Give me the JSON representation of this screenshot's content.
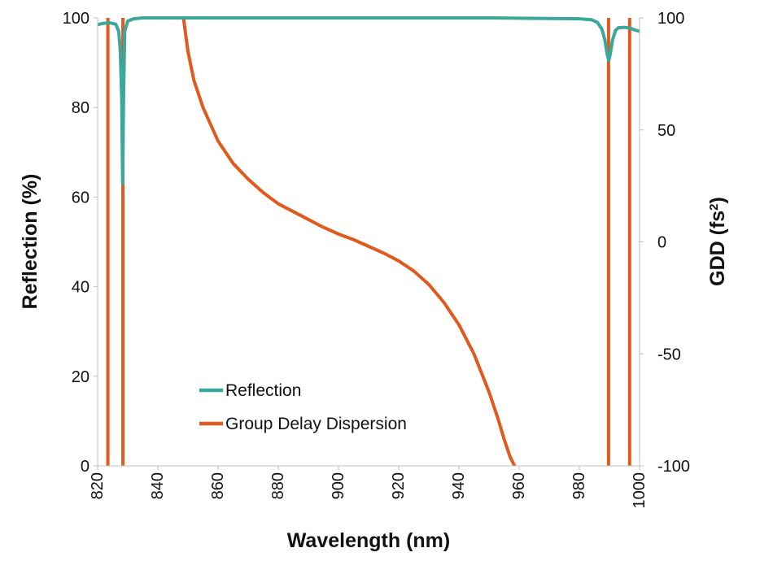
{
  "chart_data": {
    "type": "line",
    "title": "",
    "xlabel": "Wavelength (nm)",
    "ylabel": "Reflection (%)",
    "ylabel_right": "GDD (fs",
    "ylabel_right_sup": "2",
    "ylabel_right_close": ")",
    "xlim": [
      820,
      1000
    ],
    "ylim": [
      0,
      100
    ],
    "ylim_right": [
      -100,
      100
    ],
    "x_ticks": [
      "820",
      "840",
      "860",
      "880",
      "900",
      "920",
      "940",
      "960",
      "980",
      "1000"
    ],
    "y_ticks": [
      "0",
      "20",
      "40",
      "60",
      "80",
      "100"
    ],
    "y_ticks_right": [
      "-100",
      "-50",
      "0",
      "50",
      "100"
    ],
    "series": [
      {
        "name": "Reflection",
        "axis": "left",
        "color": "#3aa89a",
        "x": [
          820,
          822,
          824,
          826,
          827,
          827.5,
          828,
          828.3,
          828.6,
          829,
          830,
          832,
          835,
          840,
          850,
          900,
          950,
          980,
          984,
          986,
          987.5,
          988.5,
          989.2,
          989.8,
          990.3,
          991,
          992,
          993,
          995,
          997,
          998,
          1000
        ],
        "values": [
          98.5,
          98.8,
          98.9,
          98.6,
          97,
          93,
          82,
          63,
          82,
          97,
          99.3,
          99.8,
          100,
          100,
          100,
          100,
          100,
          99.8,
          99.6,
          99,
          97.5,
          95,
          92,
          90.5,
          92,
          95,
          97.2,
          97.8,
          97.9,
          97.7,
          97.4,
          97
        ]
      },
      {
        "name": "Group Delay Dispersion",
        "axis": "right",
        "color": "#e05a1e",
        "branches": [
          {
            "x": [
              823.4,
              823.4
            ],
            "values": [
              100,
              -100
            ]
          },
          {
            "x": [
              828.4,
              828.4
            ],
            "values": [
              -100,
              100
            ]
          },
          {
            "x": [
              848.5,
              850,
              852,
              855,
              860,
              865,
              870,
              875,
              880,
              885,
              890,
              895,
              900,
              905,
              910,
              915,
              920,
              925,
              930,
              935,
              940,
              945,
              950,
              953,
              955,
              957,
              958.5
            ],
            "values": [
              100,
              85,
              72,
              60,
              45,
              35,
              28,
              22,
              17,
              13.5,
              10,
              6.5,
              3.5,
              1,
              -2,
              -5,
              -8.5,
              -13,
              -19,
              -27,
              -37,
              -50,
              -67,
              -79,
              -88,
              -96,
              -100
            ]
          },
          {
            "x": [
              989.7,
              989.7
            ],
            "values": [
              -100,
              100
            ]
          },
          {
            "x": [
              996.7,
              996.7
            ],
            "values": [
              100,
              -100
            ]
          }
        ]
      }
    ],
    "legend": {
      "position": "lower-left",
      "entries": [
        "Reflection",
        "Group Delay Dispersion"
      ]
    },
    "grid": false
  }
}
